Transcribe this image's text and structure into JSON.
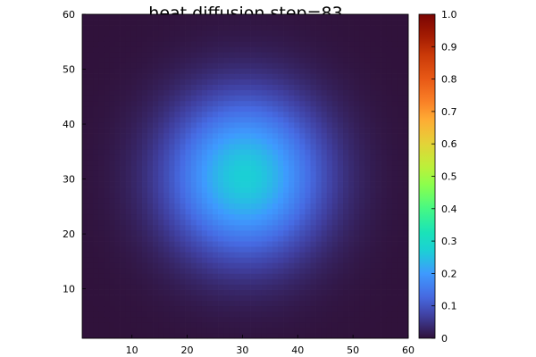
{
  "chart_data": {
    "type": "heatmap",
    "title": "heat diffusion step=83",
    "xlabel": "",
    "ylabel": "",
    "xlim": [
      1,
      60
    ],
    "ylim": [
      1,
      60
    ],
    "grid_size": [
      60,
      60
    ],
    "x_ticks": [
      "10",
      "20",
      "30",
      "40",
      "50",
      "60"
    ],
    "y_ticks": [
      "10",
      "20",
      "30",
      "40",
      "50",
      "60"
    ],
    "colorbar": {
      "range": [
        0,
        1
      ],
      "ticks": [
        "0",
        "0.1",
        "0.2",
        "0.3",
        "0.4",
        "0.5",
        "0.6",
        "0.7",
        "0.8",
        "0.9",
        "1.0"
      ],
      "colormap": "turbo"
    },
    "field": {
      "shape": "gaussian",
      "center_x": 30.5,
      "center_y": 30.5,
      "peak_value": 0.27,
      "sigma_x": 9.8,
      "sigma_y": 10.3
    },
    "grid": false,
    "legend": "colorbar-right"
  }
}
